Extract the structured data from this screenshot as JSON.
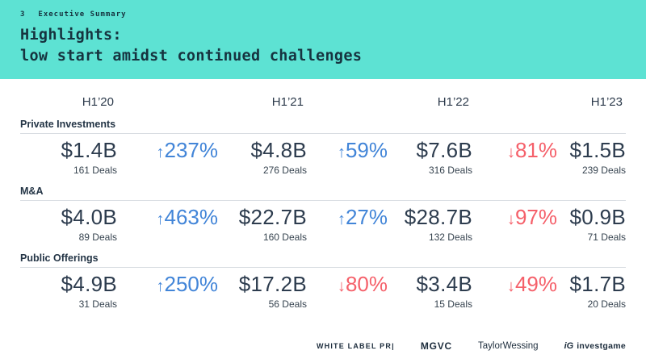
{
  "slide": {
    "page_number": "3",
    "kicker": "Executive Summary",
    "title_line1": "Highlights:",
    "title_line2": "low start amidst continued challenges"
  },
  "columns": {
    "c1": "H1’20",
    "c2": "H1’21",
    "c3": "H1’22",
    "c4": "H1’23"
  },
  "sections": [
    {
      "label": "Private Investments",
      "v1": {
        "amount": "$1.4B",
        "deals": "161 Deals"
      },
      "p1": {
        "arrow": "↑",
        "value": "237%"
      },
      "v2": {
        "amount": "$4.8B",
        "deals": "276 Deals"
      },
      "p2": {
        "arrow": "↑",
        "value": "59%"
      },
      "v3": {
        "amount": "$7.6B",
        "deals": "316 Deals"
      },
      "p3": {
        "arrow": "↓",
        "value": "81%"
      },
      "v4": {
        "amount": "$1.5B",
        "deals": "239 Deals"
      }
    },
    {
      "label": "M&A",
      "v1": {
        "amount": "$4.0B",
        "deals": "89 Deals"
      },
      "p1": {
        "arrow": "↑",
        "value": "463%"
      },
      "v2": {
        "amount": "$22.7B",
        "deals": "160 Deals"
      },
      "p2": {
        "arrow": "↑",
        "value": "27%"
      },
      "v3": {
        "amount": "$28.7B",
        "deals": "132 Deals"
      },
      "p3": {
        "arrow": "↓",
        "value": "97%"
      },
      "v4": {
        "amount": "$0.9B",
        "deals": "71 Deals"
      }
    },
    {
      "label": "Public Offerings",
      "v1": {
        "amount": "$4.9B",
        "deals": "31 Deals"
      },
      "p1": {
        "arrow": "↑",
        "value": "250%"
      },
      "v2": {
        "amount": "$17.2B",
        "deals": "56 Deals"
      },
      "p2": {
        "arrow": "↓",
        "value": "80%"
      },
      "v3": {
        "amount": "$3.4B",
        "deals": "15 Deals"
      },
      "p3": {
        "arrow": "↓",
        "value": "49%"
      },
      "v4": {
        "amount": "$1.7B",
        "deals": "20 Deals"
      }
    }
  ],
  "footer": {
    "logos": {
      "white_label": "WHITE LABEL PR|",
      "mgvc": "MGVC",
      "taylor_wessing": "TaylorWessing",
      "investgame_mark": "iG",
      "investgame": "investgame"
    }
  },
  "colors": {
    "teal": "#5DE2D3",
    "navy": "#2D3C4E",
    "blue": "#4285D8",
    "red": "#F5606A"
  }
}
